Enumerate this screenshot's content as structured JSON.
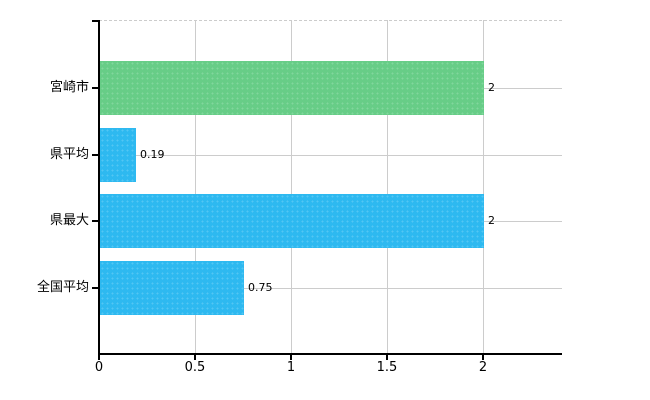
{
  "chart_data": {
    "type": "bar",
    "orientation": "horizontal",
    "categories": [
      "宮崎市",
      "県平均",
      "県最大",
      "全国平均"
    ],
    "values": [
      2,
      0.19,
      2,
      0.75
    ],
    "value_labels": [
      "2",
      "0.19",
      "2",
      "0.75"
    ],
    "bar_colors": [
      "#67cd87",
      "#2eb9f0",
      "#2eb9f0",
      "#2eb9f0"
    ],
    "x_ticks": [
      0,
      0.5,
      1,
      1.5,
      2
    ],
    "x_tick_labels": [
      "0",
      "0.5",
      "1",
      "1.5",
      "2"
    ],
    "xlim": [
      0,
      2.41
    ],
    "grid": true,
    "legend": "none",
    "colors": {
      "axis": "#000000",
      "gridline": "#cccccc",
      "background": "#ffffff",
      "text": "#000000"
    }
  }
}
